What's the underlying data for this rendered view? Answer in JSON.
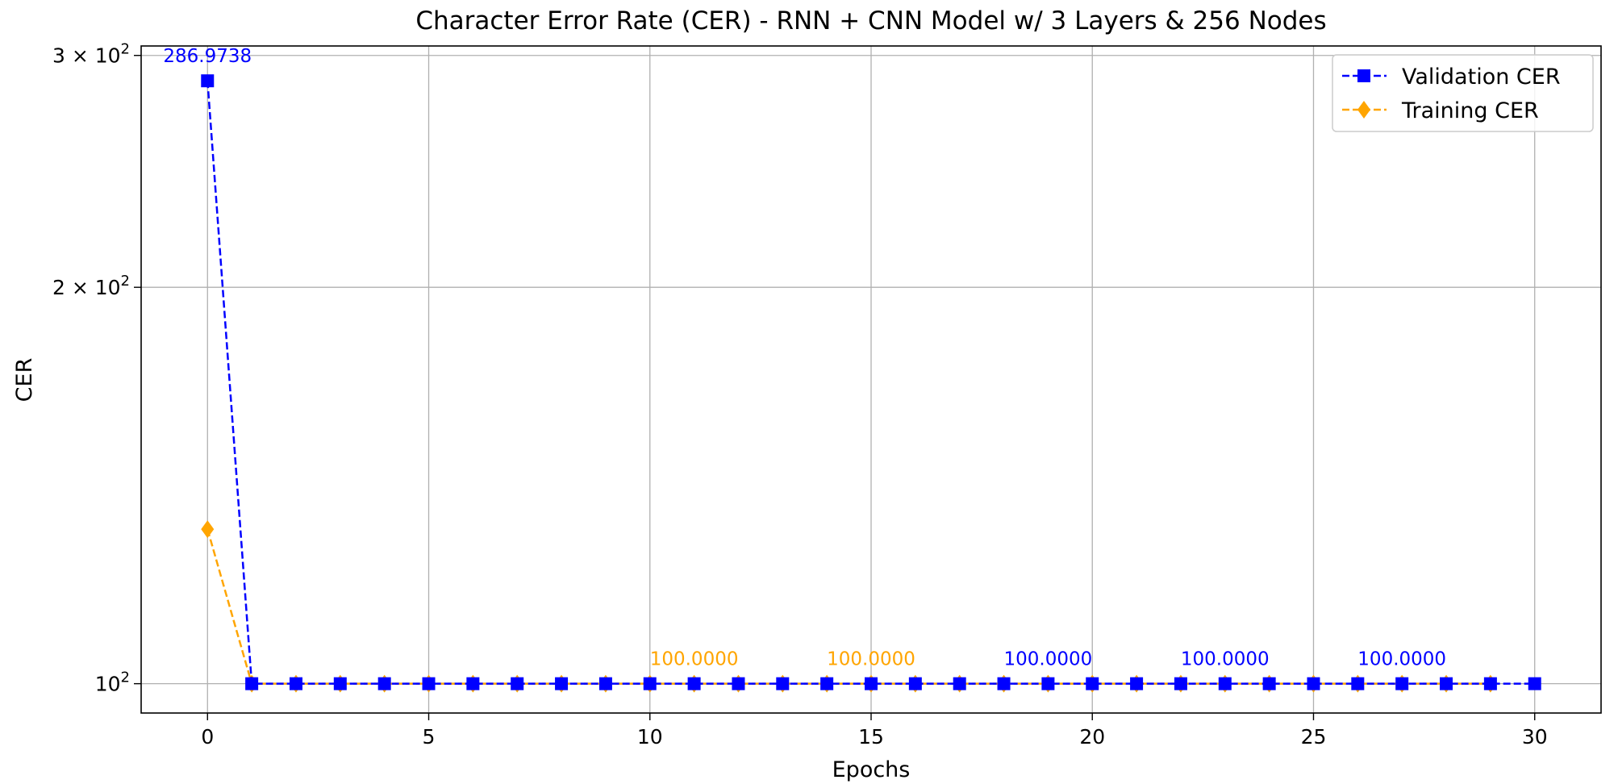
{
  "chart_data": {
    "type": "line",
    "title": "Character Error Rate (CER) - RNN + CNN Model w/ 3 Layers & 256 Nodes",
    "xlabel": "Epochs",
    "ylabel": "CER",
    "xlim": [
      -1.5,
      31.5
    ],
    "ylim": [
      95,
      305
    ],
    "yscale": "log",
    "grid": true,
    "legend_position": "top-right",
    "x_ticks": [
      0,
      5,
      10,
      15,
      20,
      25,
      30
    ],
    "x_tick_labels": [
      "0",
      "5",
      "10",
      "15",
      "20",
      "25",
      "30"
    ],
    "y_ticks": [
      {
        "value": 100,
        "base": "10",
        "exp": "2"
      },
      {
        "value": 200,
        "base": "2 × 10",
        "exp": "2"
      },
      {
        "value": 300,
        "base": "3 × 10",
        "exp": "2"
      }
    ],
    "series": [
      {
        "name": "Validation CER",
        "color": "#0000ff",
        "marker": "square",
        "linestyle": "dashed",
        "x": [
          0,
          1,
          2,
          3,
          4,
          5,
          6,
          7,
          8,
          9,
          10,
          11,
          12,
          13,
          14,
          15,
          16,
          17,
          18,
          19,
          20,
          21,
          22,
          23,
          24,
          25,
          26,
          27,
          28,
          29,
          30
        ],
        "y": [
          286.9738,
          100,
          100,
          100,
          100,
          100,
          100,
          100,
          100,
          100,
          100,
          100,
          100,
          100,
          100,
          100,
          100,
          100,
          100,
          100,
          100,
          100,
          100,
          100,
          100,
          100,
          100,
          100,
          100,
          100,
          100
        ]
      },
      {
        "name": "Training CER",
        "color": "#ffa500",
        "marker": "diamond",
        "linestyle": "dashed",
        "x": [
          0,
          1,
          2,
          3,
          4,
          5,
          6,
          7,
          8,
          9,
          10,
          11,
          12,
          13,
          14,
          15,
          16,
          17,
          18,
          19,
          20,
          21,
          22,
          23,
          24,
          25,
          26,
          27,
          28,
          29
        ],
        "y": [
          131,
          100,
          100,
          100,
          100,
          100,
          100,
          100,
          100,
          100,
          100,
          100,
          100,
          100,
          100,
          100,
          100,
          100,
          100,
          100,
          100,
          100,
          100,
          100,
          100,
          100,
          100,
          100,
          100,
          100
        ]
      }
    ],
    "annotations": [
      {
        "x": 0,
        "y": 286.9738,
        "text": "286.9738",
        "color": "#0000ff"
      },
      {
        "x": 11,
        "y": 100,
        "text": "100.0000",
        "color": "#ffa500"
      },
      {
        "x": 15,
        "y": 100,
        "text": "100.0000",
        "color": "#ffa500"
      },
      {
        "x": 19,
        "y": 100,
        "text": "100.0000",
        "color": "#0000ff"
      },
      {
        "x": 23,
        "y": 100,
        "text": "100.0000",
        "color": "#0000ff"
      },
      {
        "x": 27,
        "y": 100,
        "text": "100.0000",
        "color": "#0000ff"
      }
    ]
  }
}
